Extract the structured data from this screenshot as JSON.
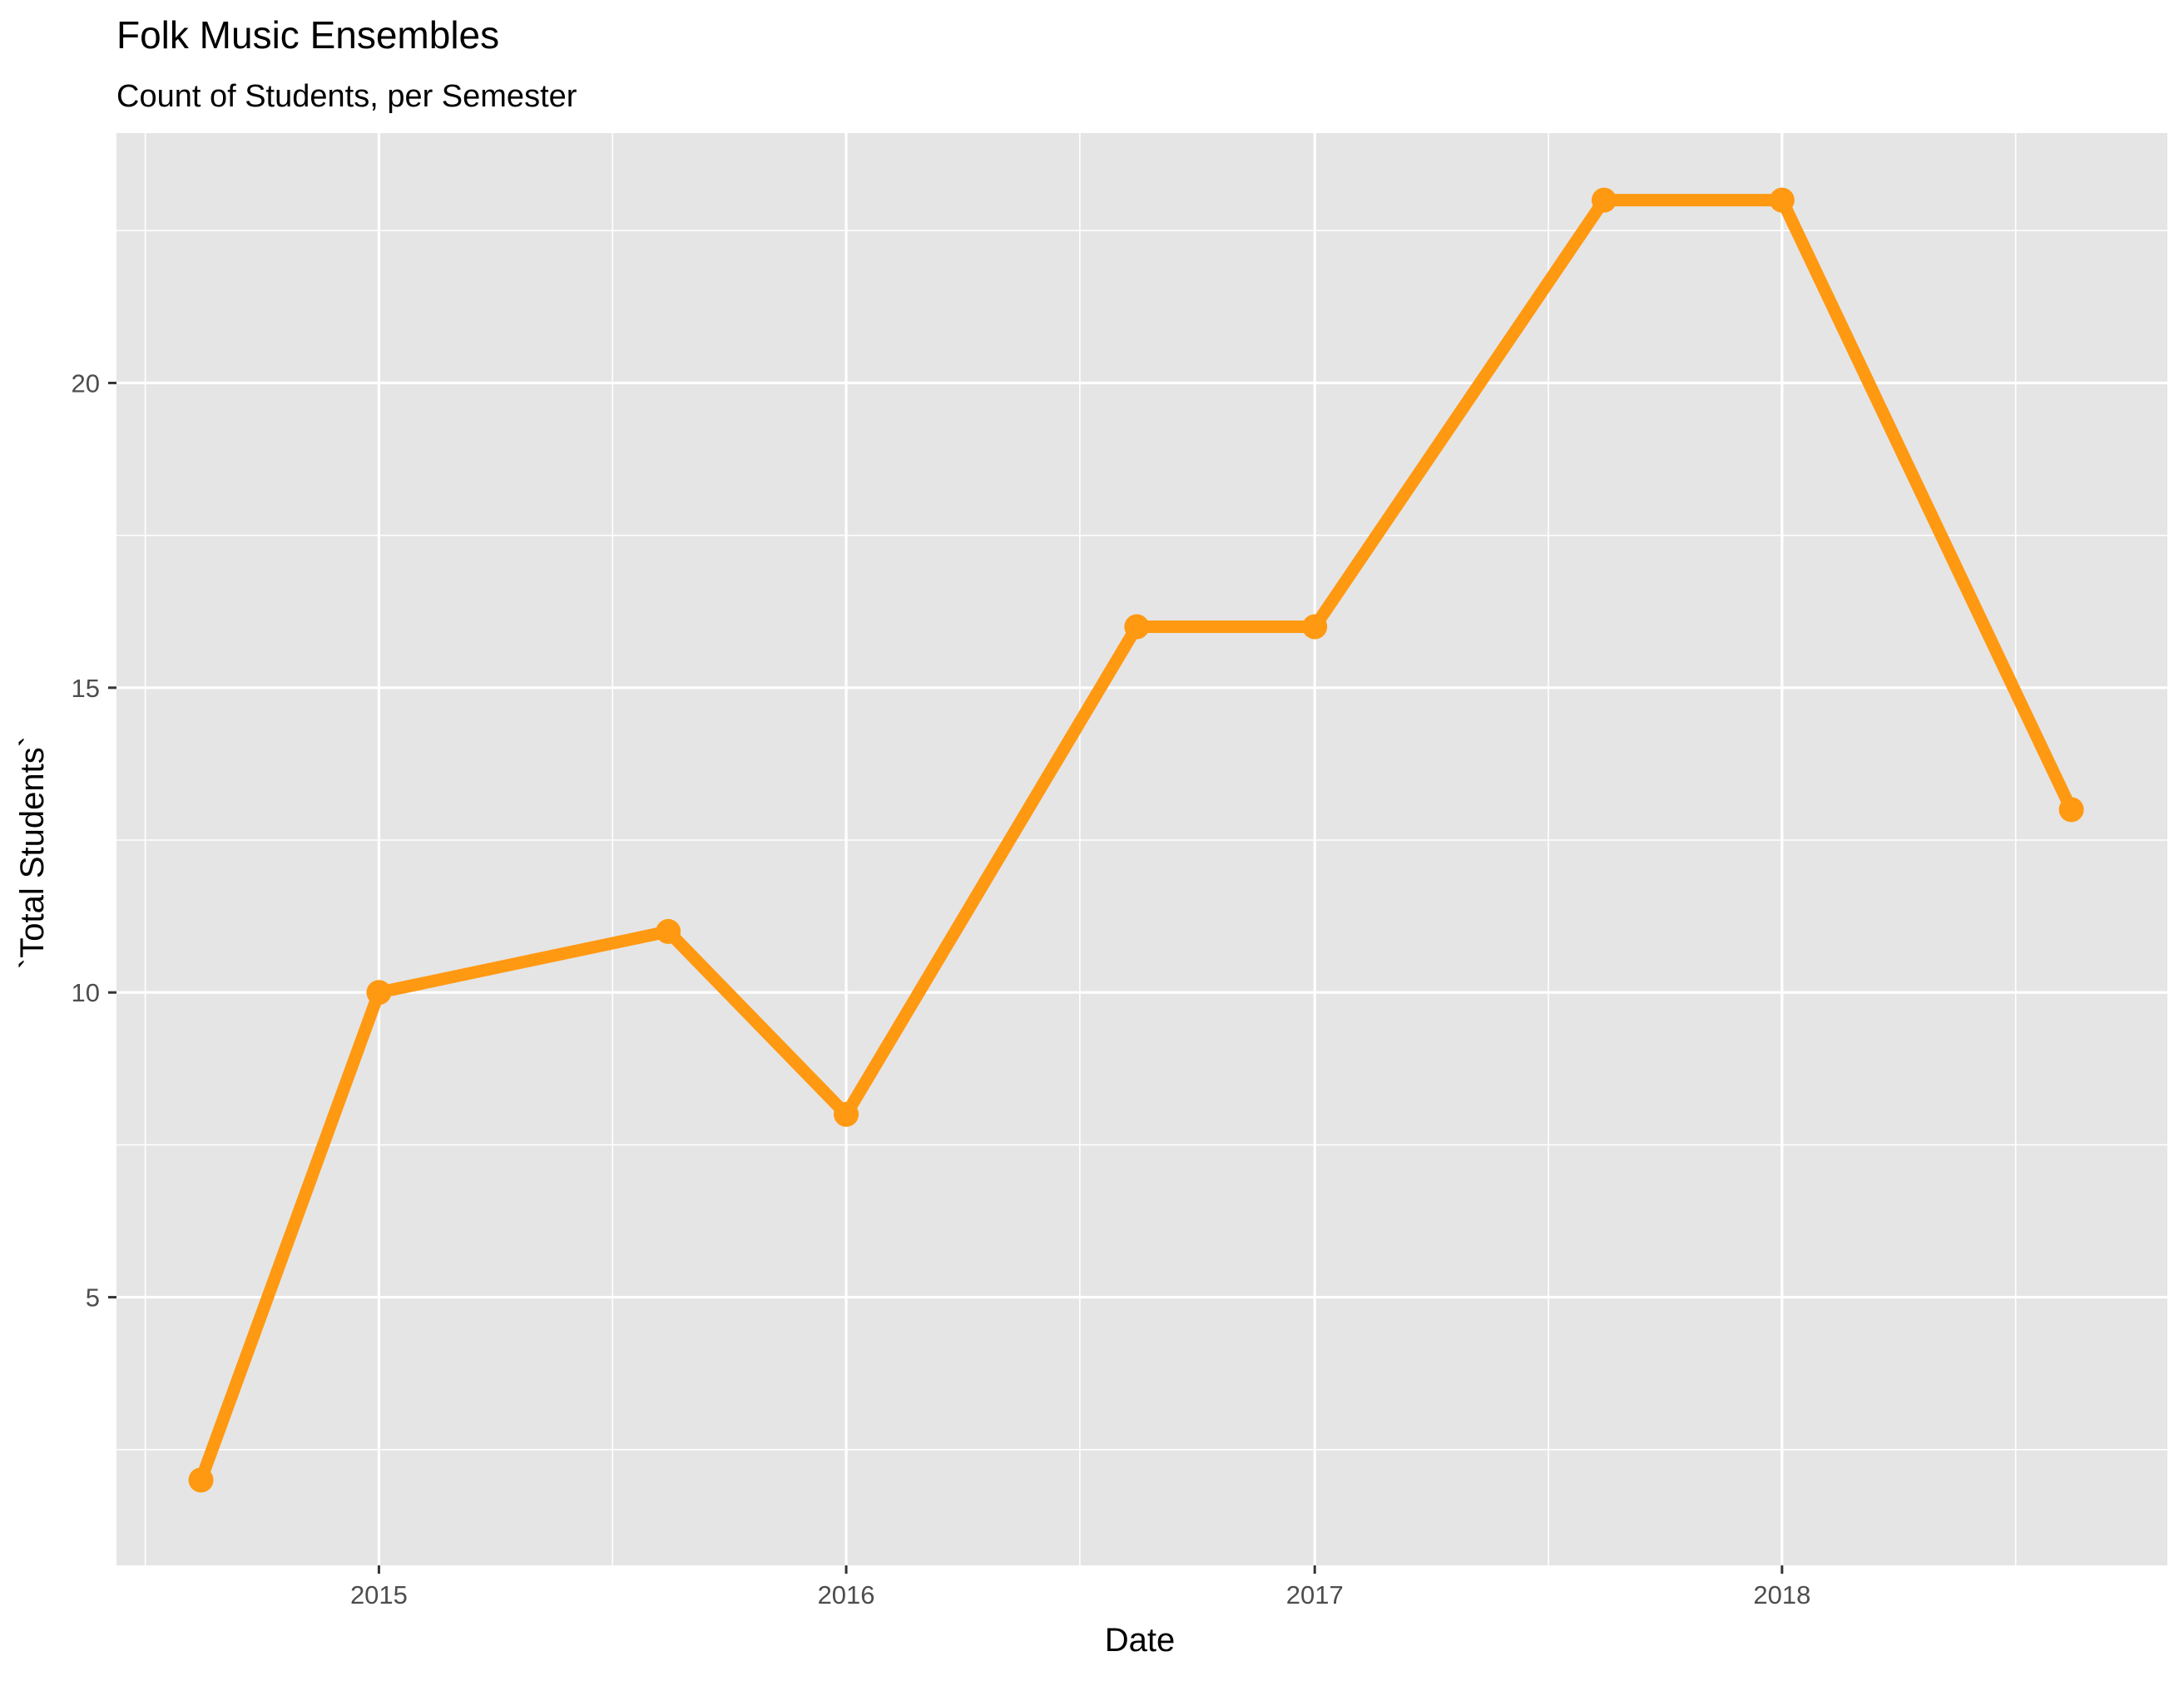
{
  "chart_data": {
    "type": "line",
    "title": "Folk Music Ensembles",
    "subtitle": "Count of Students, per Semester",
    "xlabel": "Date",
    "ylabel": "`Total Students`",
    "x": [
      "2014-08-15",
      "2015-01-01",
      "2015-08-15",
      "2016-01-01",
      "2016-08-15",
      "2017-01-01",
      "2017-08-15",
      "2018-01-01",
      "2018-08-15"
    ],
    "values": [
      2,
      10,
      11,
      8,
      16,
      16,
      23,
      23,
      13
    ],
    "x_ticks": [
      "2015-01-01",
      "2016-01-01",
      "2017-01-01",
      "2018-01-01"
    ],
    "x_tick_labels": [
      "2015",
      "2016",
      "2017",
      "2018"
    ],
    "x_range": [
      "2014-06-10",
      "2018-10-29"
    ],
    "y_ticks": [
      5,
      10,
      15,
      20
    ],
    "y_tick_labels": [
      "5",
      "10",
      "15",
      "20"
    ],
    "ylim": [
      0.6,
      24.1
    ],
    "grid": true,
    "legend": "none",
    "colors": {
      "series": "#ff9912",
      "panel": "#e5e5e5",
      "grid": "#ffffff"
    }
  }
}
